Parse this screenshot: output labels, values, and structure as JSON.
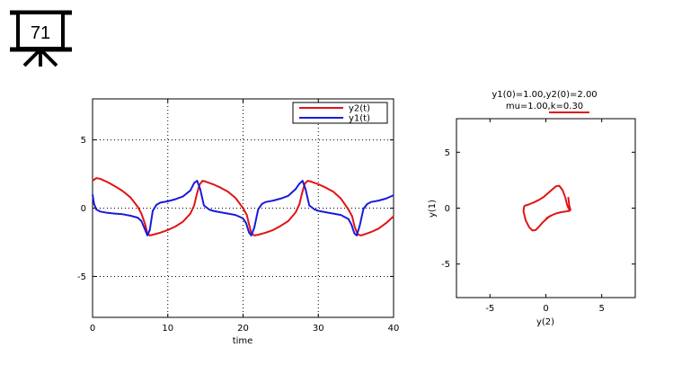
{
  "slide": {
    "number_label": "71"
  },
  "colors": {
    "y1": "#1a1adc",
    "y2": "#e01414",
    "grid": "#000000",
    "annotation_underline": "#e01414"
  },
  "chart_data": [
    {
      "type": "line",
      "title": "",
      "xlabel": "time",
      "ylabel": "",
      "xlim": [
        0,
        40
      ],
      "ylim": [
        -8,
        8
      ],
      "xticks": [
        0,
        10,
        20,
        30,
        40
      ],
      "yticks": [
        -5,
        0,
        5
      ],
      "grid": true,
      "legend": "top-right",
      "series": [
        {
          "name": "y2(t)",
          "color": "#e01414",
          "x": [
            0,
            0.5,
            1,
            2,
            3,
            4,
            5,
            6,
            6.5,
            7,
            7.3,
            7.6,
            8,
            9,
            10,
            11,
            12,
            13,
            13.5,
            13.8,
            14.2,
            14.6,
            15,
            16,
            17,
            18,
            19,
            20,
            20.5,
            20.8,
            21.1,
            21.5,
            22,
            23,
            24,
            25,
            26,
            27,
            27.5,
            27.8,
            28.2,
            28.6,
            29,
            30,
            31,
            32,
            33,
            34,
            34.5,
            34.8,
            35.2,
            35.6,
            36,
            37,
            38,
            39,
            40
          ],
          "y": [
            2.0,
            2.2,
            2.15,
            1.9,
            1.6,
            1.25,
            0.8,
            0.1,
            -0.4,
            -1.2,
            -1.85,
            -2.0,
            -1.95,
            -1.8,
            -1.6,
            -1.35,
            -1.0,
            -0.4,
            0.2,
            0.9,
            1.7,
            2.0,
            1.95,
            1.75,
            1.5,
            1.2,
            0.75,
            0.0,
            -0.5,
            -1.2,
            -1.85,
            -2.0,
            -1.95,
            -1.8,
            -1.6,
            -1.3,
            -0.95,
            -0.3,
            0.3,
            1.0,
            1.8,
            2.0,
            1.95,
            1.75,
            1.5,
            1.2,
            0.7,
            -0.1,
            -0.6,
            -1.3,
            -1.9,
            -2.0,
            -1.95,
            -1.75,
            -1.5,
            -1.1,
            -0.6
          ]
        },
        {
          "name": "y1(t)",
          "color": "#1a1adc",
          "x": [
            0,
            0.2,
            0.5,
            1,
            2,
            3,
            4,
            5,
            6,
            6.5,
            7,
            7.3,
            7.6,
            8,
            8.5,
            9,
            10,
            11,
            12,
            13,
            13.5,
            13.9,
            14.3,
            14.8,
            15.5,
            16,
            17,
            18,
            19,
            20,
            20.4,
            20.8,
            21.1,
            21.5,
            22,
            22.5,
            23,
            24,
            25,
            26,
            27,
            27.5,
            27.9,
            28.3,
            28.8,
            29.5,
            30,
            31,
            32,
            33,
            34,
            34.4,
            34.8,
            35.1,
            35.5,
            36,
            36.5,
            37,
            38,
            39,
            40
          ],
          "y": [
            1.0,
            0.3,
            -0.1,
            -0.25,
            -0.35,
            -0.4,
            -0.45,
            -0.55,
            -0.7,
            -0.95,
            -1.6,
            -2.0,
            -1.6,
            -0.2,
            0.25,
            0.4,
            0.5,
            0.65,
            0.85,
            1.3,
            1.85,
            2.0,
            1.4,
            0.2,
            -0.1,
            -0.2,
            -0.3,
            -0.4,
            -0.5,
            -0.75,
            -1.1,
            -1.8,
            -2.0,
            -1.4,
            -0.1,
            0.3,
            0.45,
            0.55,
            0.7,
            0.9,
            1.4,
            1.8,
            2.0,
            1.4,
            0.2,
            -0.1,
            -0.2,
            -0.3,
            -0.4,
            -0.5,
            -0.8,
            -1.2,
            -1.85,
            -2.0,
            -1.3,
            -0.05,
            0.3,
            0.45,
            0.55,
            0.7,
            0.95
          ]
        }
      ]
    },
    {
      "type": "line",
      "title_lines": [
        "y1(0)=1.00,y2(0)=2.00",
        "mu=1.00,k=0.30"
      ],
      "xlabel": "y(2)",
      "ylabel": "y(1)",
      "xlim": [
        -8,
        8
      ],
      "ylim": [
        -8,
        8
      ],
      "xticks": [
        -5,
        0,
        5
      ],
      "yticks": [
        -5,
        0,
        5
      ],
      "grid": false,
      "series": [
        {
          "color": "#e01414",
          "x": [
            2.0,
            2.1,
            2.2,
            2.1,
            1.8,
            1.4,
            1.0,
            0.6,
            0.25,
            -0.05,
            -0.35,
            -0.6,
            -0.9,
            -1.2,
            -1.5,
            -1.8,
            -2.0,
            -1.95,
            -1.9,
            -1.8,
            -1.6,
            -1.35,
            -1.0,
            -0.6,
            -0.2,
            0.2,
            0.6,
            0.9,
            1.2,
            1.5,
            1.75,
            1.9,
            2.0,
            2.1,
            2.2,
            2.1,
            2.0,
            1.8,
            1.4,
            1.0,
            0.6,
            0.3,
            0.0
          ],
          "y": [
            1.0,
            0.2,
            -0.15,
            -0.25,
            -0.3,
            -0.35,
            -0.45,
            -0.6,
            -0.8,
            -1.05,
            -1.35,
            -1.65,
            -1.95,
            -2.0,
            -1.7,
            -1.1,
            -0.3,
            0.1,
            0.2,
            0.25,
            0.3,
            0.4,
            0.55,
            0.75,
            1.0,
            1.35,
            1.7,
            1.95,
            2.0,
            1.6,
            0.9,
            0.3,
            0.05,
            -0.1,
            -0.15,
            -0.2,
            -0.25,
            -0.3,
            -0.35,
            -0.45,
            -0.6,
            -0.75,
            -0.95
          ]
        }
      ]
    }
  ]
}
